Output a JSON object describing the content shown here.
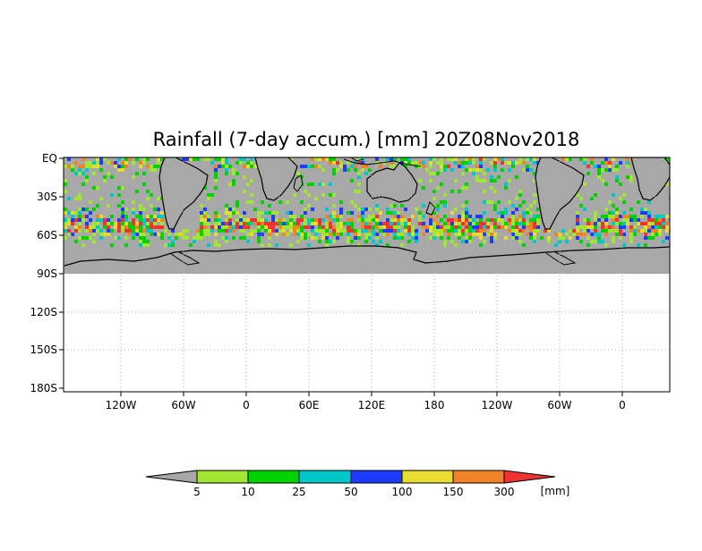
{
  "title": "Rainfall (7-day accum.) [mm] 20Z08Nov2018",
  "map": {
    "y_labels": [
      "EQ",
      "30S",
      "60S",
      "90S",
      "120S",
      "150S",
      "180S"
    ],
    "x_labels": [
      "120W",
      "60W",
      "0",
      "60E",
      "120E",
      "180",
      "120W",
      "60W",
      "0"
    ],
    "no_data_color": "#a8a8a8",
    "coastline_color": "#000000",
    "gridline_style": "dotted"
  },
  "colorbar": {
    "tick_labels": [
      "5",
      "10",
      "25",
      "50",
      "100",
      "150",
      "300"
    ],
    "unit": "[mm]",
    "colors": [
      "#a8a8a8",
      "#a0e632",
      "#00d200",
      "#00c8c8",
      "#1e3cff",
      "#e6dc32",
      "#f08228",
      "#f03232"
    ]
  }
}
